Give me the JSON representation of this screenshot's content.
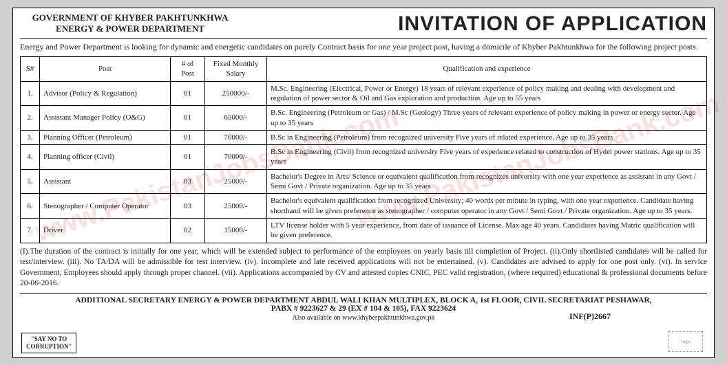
{
  "header": {
    "govt_line1": "GOVERNMENT OF KHYBER PAKHTUNKHWA",
    "govt_line2": "ENERGY & POWER DEPARTMENT",
    "title": "INVITATION OF APPLICATION"
  },
  "intro": "Energy and Power Department is looking for dynamic and energetic candidates on purely Contract basis for one year project post, having a domicile of Khyber Pakhtunkhwa for the following project posts.",
  "table": {
    "headers": {
      "sn": "S#",
      "post": "Post",
      "num": "# of Post",
      "salary": "Fixed Monthly Salary",
      "qual": "Qualification and experience"
    },
    "rows": [
      {
        "sn": "1.",
        "post": "Advisor (Policy & Regulation)",
        "num": "01",
        "salary": "250000/-",
        "qual": "M.Sc. Engineering (Electrical, Power or Energy) 18 years of relevant experience of policy making and dealing with development and regulation of power sector & Oil and Gas exploration and production. Age up to 55 years"
      },
      {
        "sn": "2.",
        "post": "Assistant Manager Policy (O&G)",
        "num": "01",
        "salary": "65000/-",
        "qual": "B.Sc. Engineering (Petroleum or Gas) / M.Sc (Geology) Three years of relevant experience of policy making in power or energy sector. Age up to 35 years"
      },
      {
        "sn": "3.",
        "post": "Planning Officer (Petroleum)",
        "num": "01",
        "salary": "70000/-",
        "qual": "B.Sc in Engineering (Petroleum) from recognized university Five years of related experience. Age up to 35 years"
      },
      {
        "sn": "4.",
        "post": "Planning officer (Civil)",
        "num": "01",
        "salary": "70000/-",
        "qual": "B.Sc in Engineering (Civil) from recognized university Five years of experience related to construction of Hydel power stations. Age up to 35 years"
      },
      {
        "sn": "5.",
        "post": "Assistant",
        "num": "03",
        "salary": "25000/-",
        "qual": "Bachelor's Degree in Arts/ Science or equivalent qualification from recognizes university with one year experience as assistant in any Govt / Semi Govt / Private organization.    Age up to 35 years"
      },
      {
        "sn": "6.",
        "post": "Stenographer / Computer Operator",
        "num": "03",
        "salary": "25000/-",
        "qual": "Bachelor's equivalent qualification from recognized University; 40 words per minute in typing, with one year experience. Candidate having shorthand will be given preference as stenographer / computer operator in any Govt / Semi Govt / Private organization. Age up to 35 years."
      },
      {
        "sn": "7.",
        "post": "Driver",
        "num": "02",
        "salary": "15000/-",
        "qual": "LTV license holder with 5 year experience, from date of issuance of License. Max age 40 years. Candidates having Matric qualification will be given preference."
      }
    ]
  },
  "notes": "(I).The duration of the contract is initially for one year, which will be extended subject to performance of the employees on yearly basis till completion of Project. (ii).Only shortlisted candidates will be called for test/interview. (iii). No TA/DA will be admissible for test interview. (iv). Incomplete and late received applications will not be entertained. (v). Candidates are advised to apply for one post only. (vi). In service Government, Employees should apply through proper channel. (vii). Applications accompanied by CV and attested copies CNIC, PEC valid registration, (where required) educational & professional documents before 20-06-2016.",
  "footer": {
    "address": "ADDITIONAL SECRETARY ENERGY & POWER DEPARTMENT ABDUL WALI KHAN MULTIPLEX, BLOCK A,  1st FLOOR,  CIVIL SECRETARIAT PESHAWAR,",
    "pabx": "PABX # 9223627 & 29 (EX # 104 & 105), FAX 9223624",
    "web": "Also available on www.khyberpakhtunkhwa.gov.pk",
    "inf": "INF(P)2667"
  },
  "sayno": "\"SAY NO TO CORRUPTION\"",
  "watermark": "www.PakistanJobsBank.com"
}
